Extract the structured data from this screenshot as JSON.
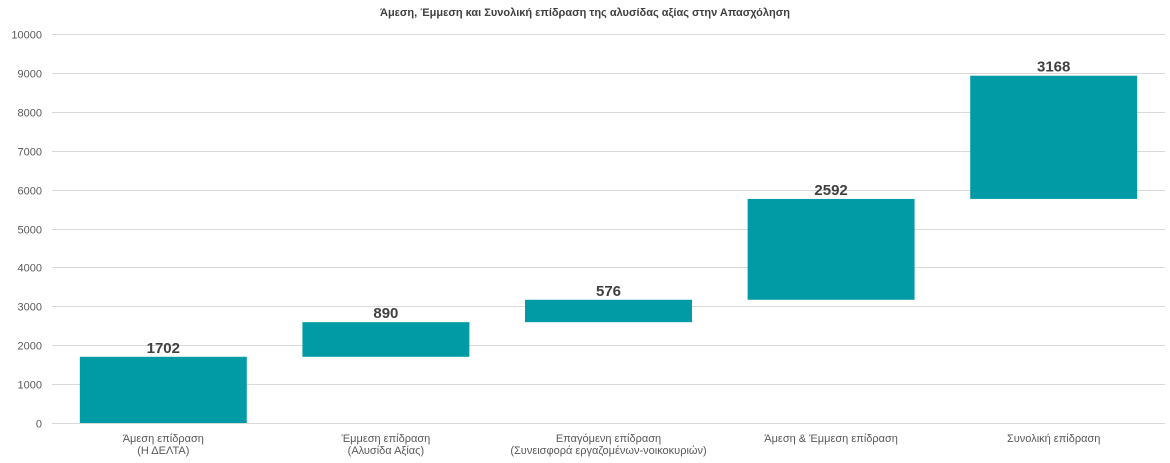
{
  "chart_data": {
    "type": "bar",
    "subtype": "waterfall",
    "title": "Άμεση, Έμμεση και Συνολική επίδραση της αλυσίδας αξίας στην Απασχόληση",
    "xlabel": "",
    "ylabel": "",
    "ylim": [
      0,
      10000
    ],
    "yticks": [
      0,
      1000,
      2000,
      3000,
      4000,
      5000,
      6000,
      7000,
      8000,
      9000,
      10000
    ],
    "grid": true,
    "legend": "none",
    "bar_color": "#009BA4",
    "categories": [
      [
        "Άμεση επίδραση",
        "(Η ΔΕΛΤΑ)"
      ],
      [
        "Έμμεση επίδραση",
        "(Αλυσίδα Αξίας)"
      ],
      [
        "Επαγόμενη επίδραση",
        "(Συνεισφορά εργαζομένων-νοικοκυριών)"
      ],
      [
        "Άμεση & Έμμεση επίδραση"
      ],
      [
        "Συνολική επίδραση"
      ]
    ],
    "bars": [
      {
        "base": 0,
        "value": 1702,
        "label": "1702"
      },
      {
        "base": 1702,
        "value": 890,
        "label": "890"
      },
      {
        "base": 2592,
        "value": 576,
        "label": "576"
      },
      {
        "base": 3168,
        "value": 2592,
        "label": "2592"
      },
      {
        "base": 5760,
        "value": 3168,
        "label": "3168"
      }
    ]
  }
}
